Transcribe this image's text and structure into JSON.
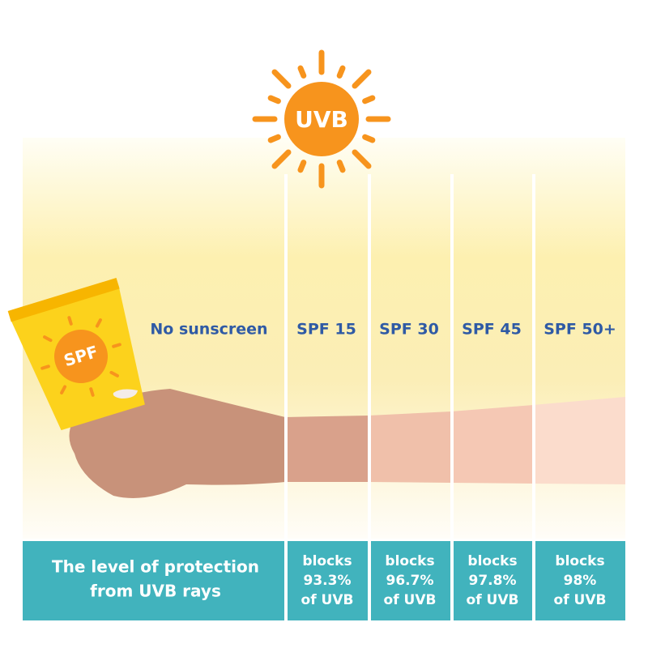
{
  "sun": {
    "label": "UVB"
  },
  "bottle": {
    "label": "SPF"
  },
  "no_sunscreen": {
    "label": "No sunscreen"
  },
  "columns": [
    {
      "label": "SPF 15",
      "blocks": [
        "blocks",
        "93.3%",
        "of UVB"
      ]
    },
    {
      "label": "SPF 30",
      "blocks": [
        "blocks",
        "96.7%",
        "of UVB"
      ]
    },
    {
      "label": "SPF 45",
      "blocks": [
        "blocks",
        "97.8%",
        "of UVB"
      ]
    },
    {
      "label": "SPF 50+",
      "blocks": [
        "blocks",
        "98%",
        "of UVB"
      ]
    }
  ],
  "footer": {
    "title": [
      "The level of protection",
      "from UVB rays"
    ]
  }
}
